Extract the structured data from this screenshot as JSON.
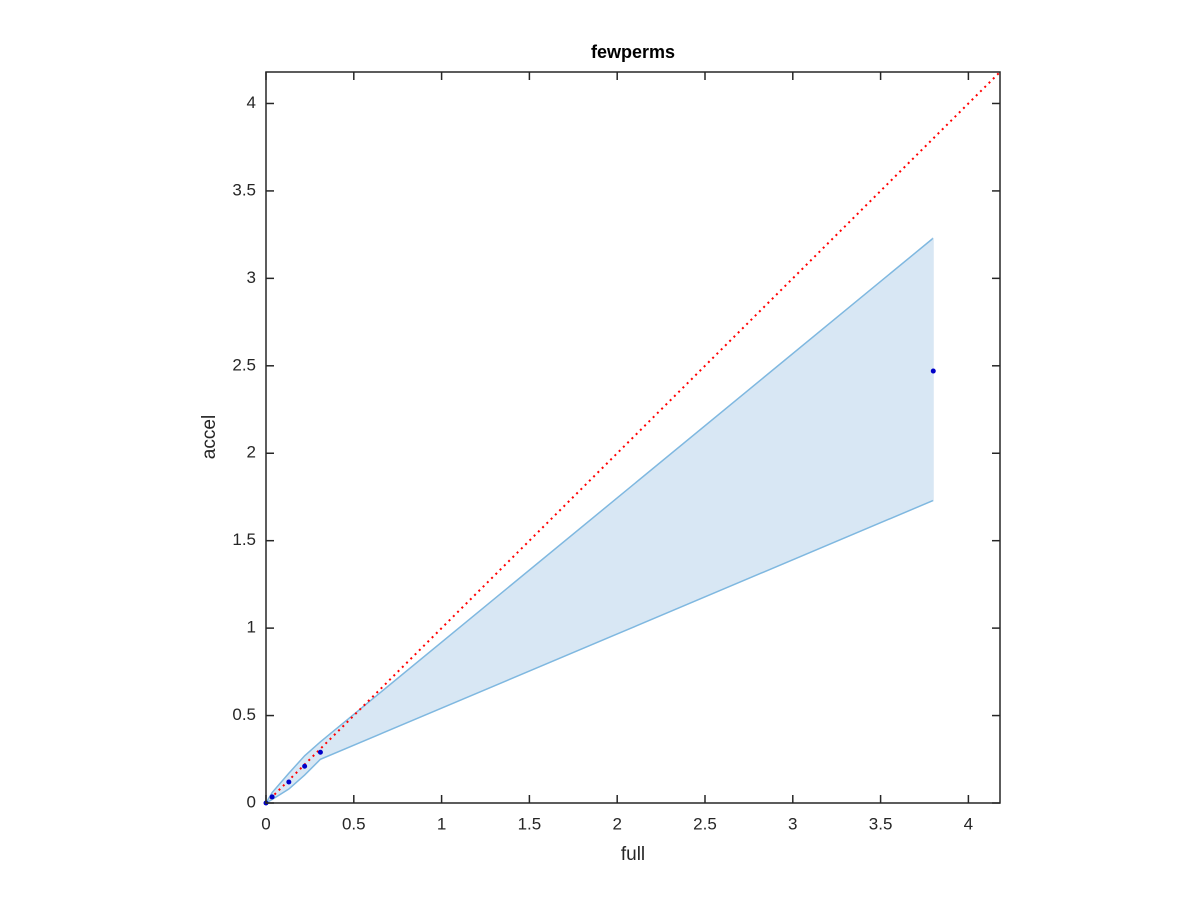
{
  "chart_data": {
    "type": "line",
    "title": "fewperms",
    "xlabel": "full",
    "ylabel": "accel",
    "xlim": [
      0,
      4.18
    ],
    "ylim": [
      0,
      4.18
    ],
    "xticks": [
      0,
      0.5,
      1,
      1.5,
      2,
      2.5,
      3,
      3.5,
      4
    ],
    "yticks": [
      0,
      0.5,
      1,
      1.5,
      2,
      2.5,
      3,
      3.5,
      4
    ],
    "band": {
      "x": [
        0,
        0.035,
        0.13,
        0.22,
        0.31,
        3.8
      ],
      "lower": [
        0,
        0.02,
        0.08,
        0.16,
        0.25,
        1.73
      ],
      "upper": [
        0,
        0.06,
        0.17,
        0.27,
        0.35,
        3.23
      ],
      "color": "#7fb8e0",
      "fill": "#d8e7f4"
    },
    "reference_line": {
      "x": [
        0,
        4.18
      ],
      "y": [
        0,
        4.18
      ],
      "color": "#ff0000"
    },
    "series": [
      {
        "color": "#0000c8",
        "x": [
          0,
          0.035,
          0.13,
          0.22,
          0.31,
          3.8
        ],
        "values": [
          0,
          0.035,
          0.12,
          0.21,
          0.29,
          2.47
        ]
      }
    ]
  }
}
